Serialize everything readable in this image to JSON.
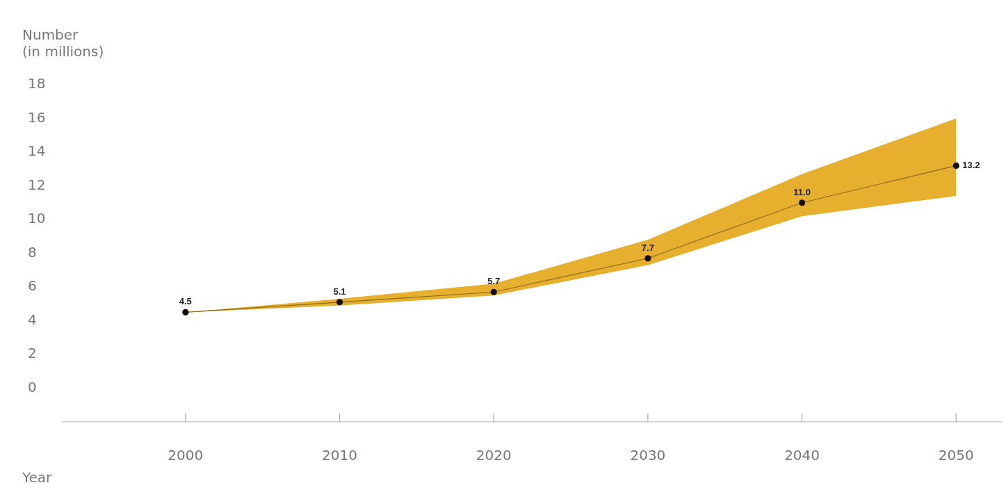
{
  "chart_data": {
    "type": "line",
    "ylabel": "Number\n(in millions)",
    "xlabel": "Year",
    "x": [
      2000,
      2010,
      2020,
      2030,
      2040,
      2050
    ],
    "series": [
      {
        "color": "#8c6a1c",
        "values": [
          4.5,
          5.1,
          5.7,
          7.7,
          11.0,
          13.2
        ],
        "value_labels": [
          "4.5",
          "5.1",
          "5.7",
          "7.7",
          "11.0",
          "13.2"
        ],
        "lower": [
          4.5,
          4.9,
          5.5,
          7.3,
          10.2,
          11.4
        ],
        "upper": [
          4.5,
          5.3,
          6.2,
          8.8,
          12.7,
          16.0
        ]
      }
    ],
    "xlim": [
      1992,
      2053
    ],
    "xticks": [
      2000,
      2010,
      2020,
      2030,
      2040,
      2050
    ],
    "ylim": [
      -2,
      18
    ],
    "yticks": [
      0,
      2,
      4,
      6,
      8,
      10,
      12,
      14,
      16,
      18
    ],
    "marker": "circle",
    "grid": false,
    "legend": false
  }
}
